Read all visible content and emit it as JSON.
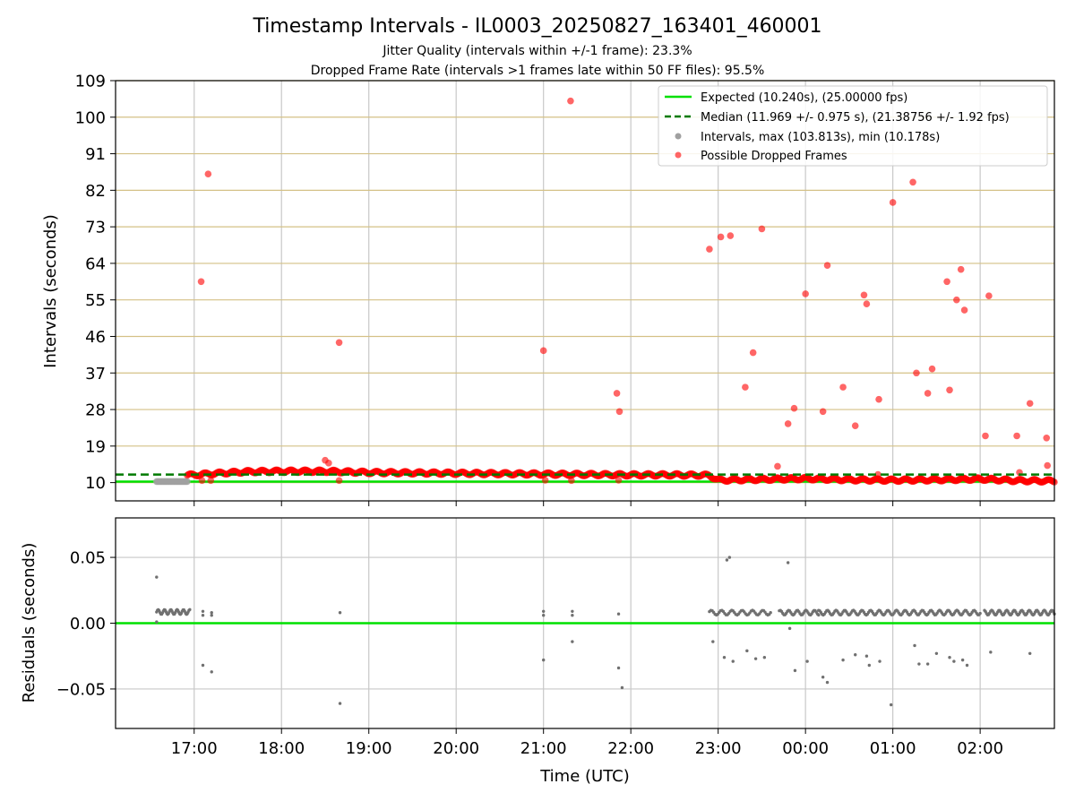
{
  "figure": {
    "title": "Timestamp Intervals - IL0003_20250827_163401_460001",
    "subtitle_1": "Jitter Quality (intervals within +/-1 frame): 23.3%",
    "subtitle_2": "Dropped Frame Rate (intervals >1 frames late within 50 FF files): 95.5%",
    "colors": {
      "expected": "#00e000",
      "median": "#007a00",
      "intervals": "#a0a0a0",
      "dropped": "#ff0000",
      "grid_h_top": "#d4c186",
      "grid_v": "#c8c8c8",
      "residual_points": "#707070"
    }
  },
  "chart_data": [
    {
      "type": "scatter",
      "panel": "intervals",
      "ylabel": "Intervals (seconds)",
      "xlabel": "",
      "ylim": [
        5.5,
        109
      ],
      "yticks": [
        "10",
        "19",
        "28",
        "37",
        "46",
        "55",
        "64",
        "73",
        "82",
        "91",
        "100",
        "109"
      ],
      "xlim": [
        16.1,
        26.85
      ],
      "xticks": [
        17,
        18,
        19,
        20,
        21,
        22,
        23,
        24,
        25,
        26
      ],
      "grid": "both",
      "legend": {
        "placement": "upper right",
        "entries": [
          {
            "key": "expected",
            "label": "Expected (10.240s), (25.00000 fps)"
          },
          {
            "key": "median",
            "label": "Median (11.969 +/- 0.975 s), (21.38756 +/- 1.92 fps)"
          },
          {
            "key": "intervals",
            "label": "Intervals, max (103.813s), min (10.178s)"
          },
          {
            "key": "dropped",
            "label": "Possible Dropped Frames"
          }
        ]
      },
      "expected_value": 10.24,
      "median_value": 11.969,
      "normal_intervals": {
        "x_range": [
          16.57,
          16.92
        ],
        "y_value": 10.26
      },
      "dropped_band": [
        {
          "x": 16.92,
          "y": 11.8
        },
        {
          "x": 17.2,
          "y": 12.2
        },
        {
          "x": 17.6,
          "y": 12.7
        },
        {
          "x": 18.0,
          "y": 12.8
        },
        {
          "x": 18.5,
          "y": 12.8
        },
        {
          "x": 19.0,
          "y": 12.5
        },
        {
          "x": 19.5,
          "y": 12.4
        },
        {
          "x": 20.0,
          "y": 12.3
        },
        {
          "x": 20.5,
          "y": 12.2
        },
        {
          "x": 21.0,
          "y": 12.1
        },
        {
          "x": 21.5,
          "y": 12.0
        },
        {
          "x": 22.0,
          "y": 11.9
        },
        {
          "x": 22.5,
          "y": 11.9
        },
        {
          "x": 22.9,
          "y": 11.8
        },
        {
          "x": 23.0,
          "y": 10.6
        },
        {
          "x": 23.5,
          "y": 10.8
        },
        {
          "x": 24.0,
          "y": 11.0
        },
        {
          "x": 24.5,
          "y": 10.7
        },
        {
          "x": 25.0,
          "y": 10.6
        },
        {
          "x": 25.5,
          "y": 10.7
        },
        {
          "x": 26.0,
          "y": 10.9
        },
        {
          "x": 26.4,
          "y": 10.5
        },
        {
          "x": 26.85,
          "y": 10.4
        }
      ],
      "dropped_points": [
        {
          "x": 17.08,
          "y": 59.5
        },
        {
          "x": 17.16,
          "y": 86.0
        },
        {
          "x": 17.09,
          "y": 10.5
        },
        {
          "x": 17.19,
          "y": 10.5
        },
        {
          "x": 18.5,
          "y": 15.5
        },
        {
          "x": 18.54,
          "y": 14.8
        },
        {
          "x": 18.66,
          "y": 44.5
        },
        {
          "x": 18.66,
          "y": 10.5
        },
        {
          "x": 21.0,
          "y": 42.5
        },
        {
          "x": 21.02,
          "y": 10.6
        },
        {
          "x": 21.31,
          "y": 104.0
        },
        {
          "x": 21.32,
          "y": 10.5
        },
        {
          "x": 21.84,
          "y": 32.0
        },
        {
          "x": 21.87,
          "y": 27.5
        },
        {
          "x": 21.86,
          "y": 10.6
        },
        {
          "x": 22.9,
          "y": 67.5
        },
        {
          "x": 23.03,
          "y": 70.5
        },
        {
          "x": 23.14,
          "y": 70.8
        },
        {
          "x": 23.31,
          "y": 33.5
        },
        {
          "x": 23.4,
          "y": 42.0
        },
        {
          "x": 23.5,
          "y": 72.5
        },
        {
          "x": 23.68,
          "y": 14.0
        },
        {
          "x": 23.8,
          "y": 24.5
        },
        {
          "x": 23.87,
          "y": 28.3
        },
        {
          "x": 24.0,
          "y": 56.5
        },
        {
          "x": 24.2,
          "y": 27.5
        },
        {
          "x": 24.25,
          "y": 63.5
        },
        {
          "x": 24.43,
          "y": 33.5
        },
        {
          "x": 24.57,
          "y": 24.0
        },
        {
          "x": 24.67,
          "y": 56.2
        },
        {
          "x": 24.7,
          "y": 54.0
        },
        {
          "x": 24.84,
          "y": 30.5
        },
        {
          "x": 24.83,
          "y": 12.0
        },
        {
          "x": 25.0,
          "y": 79.0
        },
        {
          "x": 25.23,
          "y": 84.0
        },
        {
          "x": 25.27,
          "y": 37.0
        },
        {
          "x": 25.4,
          "y": 32.0
        },
        {
          "x": 25.45,
          "y": 38.0
        },
        {
          "x": 25.62,
          "y": 59.5
        },
        {
          "x": 25.65,
          "y": 32.8
        },
        {
          "x": 25.73,
          "y": 55.0
        },
        {
          "x": 25.78,
          "y": 62.5
        },
        {
          "x": 25.82,
          "y": 52.5
        },
        {
          "x": 26.06,
          "y": 21.5
        },
        {
          "x": 26.1,
          "y": 56.0
        },
        {
          "x": 26.42,
          "y": 21.5
        },
        {
          "x": 26.45,
          "y": 12.5
        },
        {
          "x": 26.57,
          "y": 29.5
        },
        {
          "x": 26.76,
          "y": 21.0
        },
        {
          "x": 26.77,
          "y": 14.2
        }
      ]
    },
    {
      "type": "scatter",
      "panel": "residuals",
      "ylabel": "Residuals (seconds)",
      "xlabel": "Time (UTC)",
      "ylim": [
        -0.08,
        0.08
      ],
      "yticks": [
        {
          "v": 0.05,
          "label": "0.05"
        },
        {
          "v": 0.0,
          "label": "0.00"
        },
        {
          "v": -0.05,
          "label": "−0.05"
        }
      ],
      "xlim": [
        16.1,
        26.85
      ],
      "xticks": [
        {
          "v": 17,
          "label": "17:00"
        },
        {
          "v": 18,
          "label": "18:00"
        },
        {
          "v": 19,
          "label": "19:00"
        },
        {
          "v": 20,
          "label": "20:00"
        },
        {
          "v": 21,
          "label": "21:00"
        },
        {
          "v": 22,
          "label": "22:00"
        },
        {
          "v": 23,
          "label": "23:00"
        },
        {
          "v": 24,
          "label": "00:00"
        },
        {
          "v": 25,
          "label": "01:00"
        },
        {
          "v": 26,
          "label": "02:00"
        }
      ],
      "grid": "both",
      "zero_line": 0,
      "clusters": [
        {
          "x_range": [
            16.57,
            16.95
          ],
          "y": 0.0085,
          "count": 40
        },
        {
          "x_range": [
            22.9,
            23.6
          ],
          "y": 0.008,
          "count": 45
        },
        {
          "x_range": [
            23.7,
            24.15
          ],
          "y": 0.008,
          "count": 35
        },
        {
          "x_range": [
            24.15,
            26.0
          ],
          "y": 0.008,
          "count": 140
        },
        {
          "x_range": [
            26.05,
            26.85
          ],
          "y": 0.008,
          "count": 70
        }
      ],
      "points": [
        {
          "x": 16.57,
          "y": 0.035
        },
        {
          "x": 16.57,
          "y": 0.001
        },
        {
          "x": 17.1,
          "y": 0.009
        },
        {
          "x": 17.1,
          "y": 0.006
        },
        {
          "x": 17.1,
          "y": -0.032
        },
        {
          "x": 17.2,
          "y": 0.008
        },
        {
          "x": 17.2,
          "y": 0.006
        },
        {
          "x": 17.2,
          "y": -0.037
        },
        {
          "x": 18.67,
          "y": 0.008
        },
        {
          "x": 18.67,
          "y": -0.061
        },
        {
          "x": 21.0,
          "y": 0.009
        },
        {
          "x": 21.0,
          "y": 0.006
        },
        {
          "x": 21.0,
          "y": -0.028
        },
        {
          "x": 21.33,
          "y": 0.009
        },
        {
          "x": 21.33,
          "y": 0.006
        },
        {
          "x": 21.33,
          "y": -0.014
        },
        {
          "x": 21.86,
          "y": 0.007
        },
        {
          "x": 21.86,
          "y": -0.034
        },
        {
          "x": 21.9,
          "y": -0.049
        },
        {
          "x": 22.94,
          "y": -0.014
        },
        {
          "x": 23.07,
          "y": -0.026
        },
        {
          "x": 23.1,
          "y": 0.048
        },
        {
          "x": 23.13,
          "y": 0.05
        },
        {
          "x": 23.17,
          "y": -0.029
        },
        {
          "x": 23.33,
          "y": -0.021
        },
        {
          "x": 23.43,
          "y": -0.027
        },
        {
          "x": 23.53,
          "y": -0.026
        },
        {
          "x": 23.8,
          "y": 0.046
        },
        {
          "x": 23.82,
          "y": -0.004
        },
        {
          "x": 23.88,
          "y": -0.036
        },
        {
          "x": 24.02,
          "y": -0.029
        },
        {
          "x": 24.2,
          "y": -0.041
        },
        {
          "x": 24.25,
          "y": -0.045
        },
        {
          "x": 24.43,
          "y": -0.028
        },
        {
          "x": 24.57,
          "y": -0.024
        },
        {
          "x": 24.7,
          "y": -0.025
        },
        {
          "x": 24.73,
          "y": -0.032
        },
        {
          "x": 24.85,
          "y": -0.029
        },
        {
          "x": 24.98,
          "y": -0.062
        },
        {
          "x": 25.25,
          "y": -0.017
        },
        {
          "x": 25.3,
          "y": -0.031
        },
        {
          "x": 25.4,
          "y": -0.031
        },
        {
          "x": 25.5,
          "y": -0.023
        },
        {
          "x": 25.65,
          "y": -0.026
        },
        {
          "x": 25.7,
          "y": -0.029
        },
        {
          "x": 25.8,
          "y": -0.028
        },
        {
          "x": 25.85,
          "y": -0.032
        },
        {
          "x": 26.12,
          "y": -0.022
        },
        {
          "x": 26.57,
          "y": -0.023
        }
      ]
    }
  ]
}
